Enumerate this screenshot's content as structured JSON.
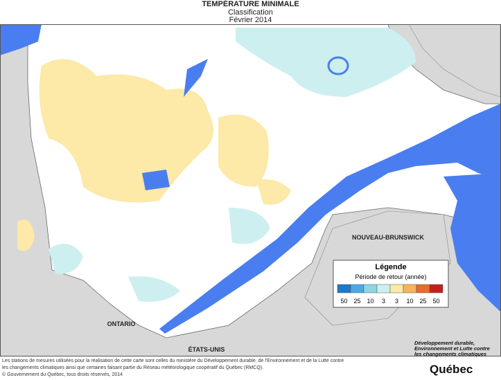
{
  "header": {
    "title": "TEMPÉRATURE MINIMALE",
    "subtitle": "Classification",
    "date": "Février 2014"
  },
  "map": {
    "labels": [
      "NOUVEAU-BRUNSWICK",
      "ONTARIO",
      "ÉTATS-UNIS"
    ]
  },
  "legend": {
    "title": "Légende",
    "subtitle": "Période de retour (année)",
    "classes": [
      {
        "label": 50,
        "color": "#1f78c8"
      },
      {
        "label": 25,
        "color": "#4fa8e6"
      },
      {
        "label": 10,
        "color": "#8fd6e3"
      },
      {
        "label": 3,
        "color": "#cdeff0"
      },
      {
        "label": 3,
        "color": "#fde9a8"
      },
      {
        "label": 10,
        "color": "#f7b45a"
      },
      {
        "label": 25,
        "color": "#ec6a2a"
      },
      {
        "label": 50,
        "color": "#c81e1e"
      }
    ]
  },
  "footer": {
    "note": "Les stations de mesures utilisées pour la réalisation de cette carte sont celles du ministère du Développement durable, de l'Environnement et de la Lutte contre les changements climatiques ainsi que certaines faisant partie du Réseau météorologique coopératif du Québec (RMCQ).",
    "copyright": "© Gouvernement du Québec, tous droits réservés, 2014",
    "logo_text": "Développement durable, Environnement et Lutte contre les changements climatiques",
    "logo_name": "Québec"
  }
}
